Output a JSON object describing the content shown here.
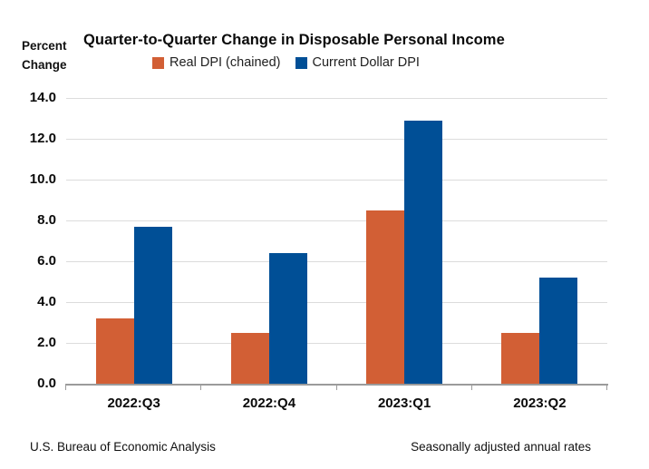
{
  "header": {
    "unit_label": "Percent\nChange"
  },
  "chart_data": {
    "type": "bar",
    "title": "Quarter-to-Quarter Change in Disposable Personal Income",
    "categories": [
      "2022:Q3",
      "2022:Q4",
      "2023:Q1",
      "2023:Q2"
    ],
    "series": [
      {
        "name": "Real DPI (chained)",
        "color": "#D25F35",
        "values": [
          3.2,
          2.5,
          8.5,
          2.5
        ]
      },
      {
        "name": "Current Dollar DPI",
        "color": "#004F96",
        "values": [
          7.7,
          6.4,
          12.9,
          5.2
        ]
      }
    ],
    "xlabel": "",
    "ylabel": "Percent Change",
    "ylim": [
      0,
      14
    ],
    "ytick_step": 2,
    "ytick_labels": [
      "0.0",
      "2.0",
      "4.0",
      "6.0",
      "8.0",
      "10.0",
      "12.0",
      "14.0"
    ],
    "grid": true,
    "legend_position": "top-center"
  },
  "footer": {
    "left": "U.S. Bureau of Economic Analysis",
    "right": "Seasonally adjusted annual rates"
  },
  "style": {
    "orange": "#D25F35",
    "blue": "#004F96",
    "gridline_color": "#DCDCDC",
    "axis_color": "#9B9B9B"
  }
}
